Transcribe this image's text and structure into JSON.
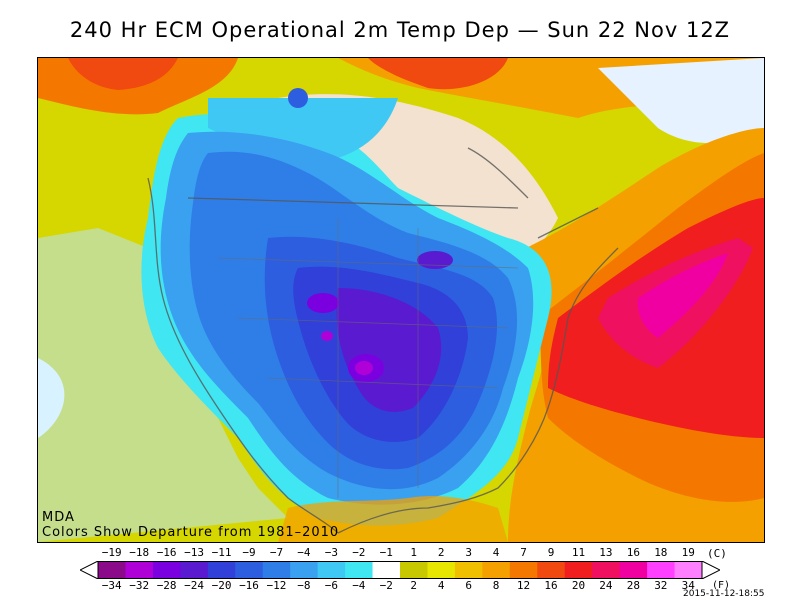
{
  "title": "240 Hr ECM Operational 2m Temp Dep — Sun 22 Nov 12Z",
  "map": {
    "source_label": "MDA",
    "caption": "Colors Show Departure from 1981–2010"
  },
  "legend": {
    "celsius_ticks": [
      "−19",
      "−18",
      "−16",
      "−13",
      "−11",
      "−9",
      "−7",
      "−4",
      "−3",
      "−2",
      "−1",
      "1",
      "2",
      "3",
      "4",
      "7",
      "9",
      "11",
      "13",
      "16",
      "18",
      "19"
    ],
    "celsius_unit": "(C)",
    "fahrenheit_ticks": [
      "−34",
      "−32",
      "−28",
      "−24",
      "−20",
      "−16",
      "−12",
      "−8",
      "−6",
      "−4",
      "−2",
      "2",
      "4",
      "6",
      "8",
      "12",
      "16",
      "20",
      "24",
      "28",
      "32",
      "34"
    ],
    "fahrenheit_unit": "(F)",
    "colors": [
      "#8a0a8a",
      "#b000d8",
      "#7a00e0",
      "#5a1ad0",
      "#3040d8",
      "#2d5ee0",
      "#2f7ee8",
      "#3aa0f0",
      "#40c8f5",
      "#40e6f2",
      "#ffffff",
      "#c8c800",
      "#e6e600",
      "#f0c000",
      "#f4a000",
      "#f47800",
      "#f04a10",
      "#f01e1e",
      "#f01060",
      "#f000a0",
      "#ff40ff",
      "#ff80ff"
    ]
  },
  "timestamp": "2015-11-12-18:55"
}
